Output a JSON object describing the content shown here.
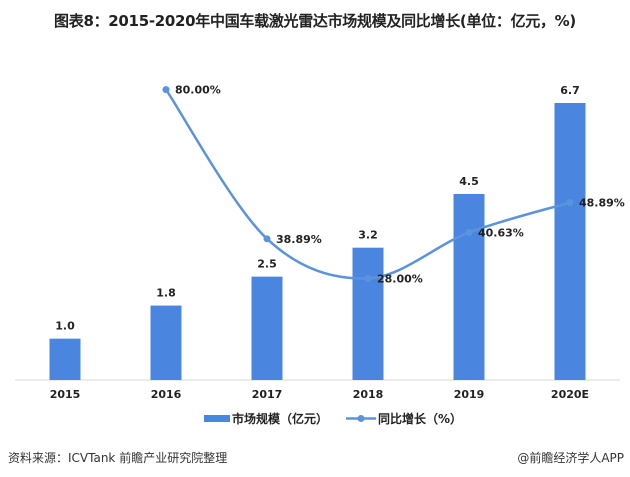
{
  "title": "图表8：2015-2020年中国车载激光雷达市场规模及同比增长(单位：亿元，%)",
  "source": "资料来源：ICVTank 前瞻产业研究院整理",
  "brand": "@前瞻经济学人APP",
  "colors": {
    "bar": "#4a86e0",
    "line": "#5b93dc"
  },
  "chart_data": {
    "type": "bar",
    "title": "图表8：2015-2020年中国车载激光雷达市场规模及同比增长(单位：亿元，%)",
    "categories": [
      "2015",
      "2016",
      "2017",
      "2018",
      "2019",
      "2020E"
    ],
    "series": [
      {
        "name": "市场规模（亿元）",
        "type": "bar",
        "values": [
          1.0,
          1.8,
          2.5,
          3.2,
          4.5,
          6.7
        ],
        "labels": [
          "1.0",
          "1.8",
          "2.5",
          "3.2",
          "4.5",
          "6.7"
        ]
      },
      {
        "name": "同比增长（%）",
        "type": "line",
        "values": [
          null,
          80.0,
          38.89,
          28.0,
          40.63,
          48.89
        ],
        "labels": [
          "",
          "80.00%",
          "38.89%",
          "28.00%",
          "40.63%",
          "48.89%"
        ]
      }
    ],
    "ylim_bar": [
      0,
      6.7
    ],
    "ylim_line": [
      0,
      80
    ],
    "grid": false,
    "legend_position": "bottom"
  }
}
